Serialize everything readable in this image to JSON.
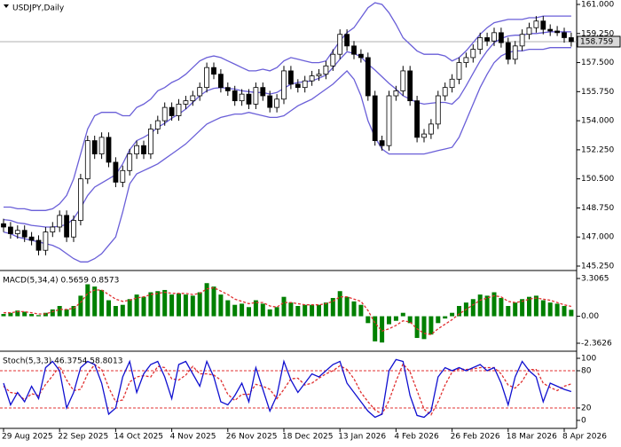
{
  "chart_data": [
    {
      "type": "candlestick",
      "title": "USDJPY,Daily",
      "categories": [
        "29 Aug 2025",
        null,
        null,
        null,
        null,
        null,
        null,
        null,
        "22 Sep 2025",
        null,
        null,
        null,
        null,
        null,
        null,
        null,
        "14 Oct 2025",
        null,
        null,
        null,
        null,
        null,
        null,
        null,
        "4 Nov 2025",
        null,
        null,
        null,
        null,
        null,
        null,
        null,
        "26 Nov 2025",
        null,
        null,
        null,
        null,
        null,
        null,
        null,
        "18 Dec 2025",
        null,
        null,
        null,
        null,
        null,
        null,
        null,
        "13 Jan 2026",
        null,
        null,
        null,
        null,
        null,
        null,
        null,
        "4 Feb 2026",
        null,
        null,
        null,
        null,
        null,
        null,
        null,
        "26 Feb 2026",
        null,
        null,
        null,
        null,
        null,
        null,
        null,
        "18 Mar 2026",
        null,
        null,
        null,
        null,
        null,
        null,
        null,
        "8 Apr 2026",
        null
      ],
      "open": [
        147.8,
        147.6,
        147.2,
        147.4,
        147.0,
        146.8,
        146.2,
        147.3,
        147.6,
        148.3,
        147.0,
        148.0,
        150.5,
        152.8,
        152.0,
        153.0,
        151.5,
        150.3,
        151.0,
        152.0,
        152.5,
        152.0,
        153.5,
        154.0,
        154.8,
        154.3,
        155.0,
        155.2,
        155.5,
        156.0,
        157.2,
        156.8,
        156.0,
        155.8,
        155.2,
        155.6,
        155.0,
        156.0,
        155.5,
        154.8,
        155.3,
        157.0,
        156.2,
        156.0,
        156.4,
        156.7,
        156.8,
        157.3,
        158.0,
        159.2,
        158.5,
        158.0,
        157.8,
        155.5,
        152.8,
        152.5,
        155.5,
        155.8,
        157.0,
        155.2,
        153.0,
        153.2,
        153.8,
        155.5,
        156.0,
        156.5,
        157.5,
        157.8,
        158.3,
        159.0,
        158.8,
        159.3,
        158.7,
        157.7,
        158.5,
        159.2,
        159.6,
        160.0,
        159.5,
        159.4,
        159.3,
        159.0
      ],
      "high": [
        148.1,
        147.9,
        147.7,
        147.7,
        147.3,
        147.1,
        147.6,
        147.9,
        148.6,
        148.6,
        148.3,
        150.8,
        153.1,
        153.1,
        153.3,
        153.3,
        151.8,
        151.3,
        152.3,
        152.8,
        152.8,
        153.8,
        154.3,
        155.1,
        155.1,
        155.3,
        155.5,
        155.8,
        156.3,
        157.5,
        157.5,
        157.1,
        156.3,
        156.1,
        155.9,
        155.9,
        156.3,
        156.3,
        155.8,
        155.6,
        157.3,
        157.3,
        156.5,
        156.7,
        157.0,
        157.1,
        157.6,
        158.3,
        159.5,
        159.5,
        158.8,
        158.3,
        158.1,
        155.8,
        153.1,
        155.8,
        156.1,
        157.3,
        157.3,
        155.5,
        153.5,
        154.1,
        155.8,
        156.3,
        156.8,
        157.8,
        158.1,
        158.6,
        159.3,
        159.3,
        159.6,
        159.6,
        159.0,
        158.8,
        159.5,
        159.9,
        160.3,
        160.3,
        159.8,
        159.7,
        159.6,
        159.3
      ],
      "low": [
        147.3,
        146.9,
        146.9,
        146.7,
        146.5,
        145.9,
        145.9,
        147.0,
        147.3,
        146.7,
        146.7,
        147.7,
        150.2,
        151.7,
        151.7,
        151.2,
        150.0,
        150.0,
        150.7,
        151.7,
        151.7,
        151.7,
        153.2,
        153.7,
        154.0,
        154.0,
        154.7,
        154.9,
        155.2,
        155.7,
        156.5,
        155.7,
        155.5,
        154.9,
        154.9,
        154.7,
        154.7,
        155.2,
        154.5,
        154.5,
        155.0,
        155.9,
        155.7,
        155.7,
        156.1,
        156.4,
        156.5,
        157.0,
        157.7,
        158.2,
        157.7,
        157.5,
        155.2,
        152.5,
        152.2,
        152.2,
        155.2,
        155.5,
        154.9,
        152.7,
        152.7,
        152.9,
        153.5,
        155.2,
        155.7,
        156.2,
        157.2,
        157.5,
        158.0,
        158.5,
        158.5,
        158.4,
        157.4,
        157.4,
        158.2,
        158.9,
        159.3,
        159.2,
        159.1,
        159.1,
        158.7,
        158.46
      ],
      "close": [
        147.6,
        147.2,
        147.4,
        147.0,
        146.8,
        146.2,
        147.3,
        147.6,
        148.3,
        147.0,
        148.0,
        150.5,
        152.8,
        152.0,
        153.0,
        151.5,
        150.3,
        151.0,
        152.0,
        152.5,
        152.0,
        153.5,
        154.0,
        154.8,
        154.3,
        155.0,
        155.2,
        155.5,
        156.0,
        157.2,
        156.8,
        156.0,
        155.8,
        155.2,
        155.6,
        155.0,
        156.0,
        155.5,
        154.8,
        155.3,
        157.0,
        156.2,
        156.0,
        156.4,
        156.7,
        156.8,
        157.3,
        158.0,
        159.2,
        158.5,
        158.0,
        157.8,
        155.5,
        152.8,
        152.5,
        155.5,
        155.8,
        157.0,
        155.2,
        153.0,
        153.2,
        153.8,
        155.5,
        156.0,
        156.5,
        157.5,
        157.8,
        158.3,
        159.0,
        158.8,
        159.3,
        158.7,
        157.7,
        158.5,
        159.2,
        159.6,
        160.0,
        159.5,
        159.4,
        159.3,
        159.0,
        158.759
      ],
      "up_color": "#ffffff",
      "down_color": "#000000",
      "bands": {
        "color": "#6a5fd8",
        "upper": [
          148.8,
          148.8,
          148.7,
          148.7,
          148.6,
          148.6,
          148.6,
          148.7,
          149.0,
          149.5,
          150.5,
          152.0,
          153.5,
          154.3,
          154.5,
          154.5,
          154.5,
          154.3,
          154.3,
          154.8,
          155.0,
          155.3,
          155.8,
          156.0,
          156.3,
          156.5,
          156.8,
          157.2,
          157.6,
          157.8,
          157.9,
          157.8,
          157.6,
          157.4,
          157.2,
          157.0,
          157.0,
          157.1,
          157.0,
          157.2,
          157.6,
          157.8,
          157.7,
          157.6,
          157.5,
          157.5,
          157.6,
          158.2,
          158.8,
          159.3,
          159.6,
          160.2,
          160.8,
          161.1,
          161.0,
          160.5,
          159.8,
          159.0,
          158.6,
          158.2,
          158.0,
          158.0,
          158.0,
          157.9,
          157.6,
          157.8,
          158.2,
          158.7,
          159.2,
          159.6,
          159.9,
          160.0,
          160.1,
          160.1,
          160.1,
          160.2,
          160.2,
          160.3,
          160.3,
          160.3,
          160.3,
          160.3
        ],
        "middle": [
          148.05,
          148.0,
          147.85,
          147.8,
          147.7,
          147.65,
          147.6,
          147.6,
          147.65,
          147.75,
          148.1,
          148.75,
          149.5,
          150.0,
          150.25,
          150.5,
          150.75,
          151.4,
          152.25,
          152.8,
          153.0,
          153.25,
          153.6,
          153.85,
          154.15,
          154.4,
          154.7,
          155.1,
          155.5,
          155.8,
          155.95,
          156.0,
          155.95,
          155.9,
          155.8,
          155.75,
          155.7,
          155.7,
          155.6,
          155.7,
          155.95,
          156.2,
          156.3,
          156.35,
          156.4,
          156.55,
          156.75,
          157.2,
          157.7,
          158.15,
          158.05,
          157.85,
          157.4,
          157.05,
          156.65,
          156.25,
          155.9,
          155.5,
          155.3,
          155.1,
          155.0,
          155.05,
          155.1,
          155.1,
          155.0,
          155.4,
          156.1,
          156.85,
          157.6,
          158.2,
          158.7,
          158.95,
          159.1,
          159.15,
          159.15,
          159.25,
          159.25,
          159.3,
          159.35,
          159.35,
          159.35,
          159.35
        ],
        "lower": [
          147.3,
          147.2,
          147.0,
          146.9,
          146.8,
          146.7,
          146.6,
          146.5,
          146.3,
          146.0,
          145.7,
          145.5,
          145.5,
          145.7,
          146.0,
          146.5,
          147.0,
          148.5,
          150.2,
          150.8,
          151.0,
          151.2,
          151.4,
          151.7,
          152.0,
          152.3,
          152.6,
          153.0,
          153.4,
          153.8,
          154.0,
          154.2,
          154.3,
          154.4,
          154.4,
          154.5,
          154.4,
          154.3,
          154.2,
          154.2,
          154.3,
          154.6,
          154.9,
          155.1,
          155.3,
          155.6,
          155.9,
          156.2,
          156.6,
          157.0,
          156.5,
          155.5,
          154.0,
          153.0,
          152.3,
          152.0,
          152.0,
          152.0,
          152.0,
          152.0,
          152.0,
          152.1,
          152.2,
          152.3,
          152.4,
          153.0,
          154.0,
          155.0,
          156.0,
          156.8,
          157.5,
          157.9,
          158.1,
          158.2,
          158.2,
          158.3,
          158.3,
          158.3,
          158.4,
          158.4,
          158.4,
          158.4
        ]
      },
      "last_price": {
        "value": 158.759,
        "label": "158.759"
      },
      "ylim": [
        145.25,
        161.0
      ],
      "yticks": [
        {
          "value": 161.0,
          "label": "161.000"
        },
        {
          "value": 159.25,
          "label": "159.250"
        },
        {
          "value": 157.5,
          "label": "157.500"
        },
        {
          "value": 155.75,
          "label": "155.750"
        },
        {
          "value": 154.0,
          "label": "154.000"
        },
        {
          "value": 152.25,
          "label": "152.250"
        },
        {
          "value": 150.5,
          "label": "150.500"
        },
        {
          "value": 148.75,
          "label": "148.750"
        },
        {
          "value": 147.0,
          "label": "147.000"
        },
        {
          "value": 145.25,
          "label": "145.250"
        }
      ]
    },
    {
      "type": "macd",
      "title": "MACD(5,34,4) 0.5659 0.8573",
      "color": "#008000",
      "signal_color": "#e03030",
      "histogram": [
        0.2,
        0.3,
        0.5,
        0.4,
        0.2,
        0.1,
        0.3,
        0.6,
        0.9,
        0.6,
        0.9,
        1.8,
        2.8,
        2.6,
        2.3,
        1.4,
        0.9,
        1.0,
        1.5,
        1.9,
        1.7,
        2.1,
        2.2,
        2.3,
        1.9,
        2.0,
        1.9,
        1.8,
        2.1,
        2.9,
        2.6,
        1.9,
        1.4,
        1.0,
        1.1,
        0.8,
        1.4,
        1.1,
        0.6,
        0.8,
        1.7,
        1.2,
        0.9,
        1.0,
        1.0,
        1.0,
        1.2,
        1.6,
        2.2,
        1.7,
        1.3,
        1.0,
        -0.6,
        -2.2,
        -2.3,
        -0.7,
        -0.4,
        0.3,
        -0.6,
        -1.9,
        -2.0,
        -1.6,
        -0.6,
        -0.2,
        0.3,
        0.9,
        1.2,
        1.5,
        1.9,
        1.8,
        2.1,
        1.6,
        0.9,
        1.2,
        1.5,
        1.7,
        1.8,
        1.4,
        1.2,
        1.1,
        0.9,
        0.5659
      ],
      "signal": [
        0.3,
        0.3,
        0.4,
        0.4,
        0.3,
        0.2,
        0.2,
        0.4,
        0.6,
        0.6,
        0.7,
        1.2,
        2.0,
        2.3,
        2.3,
        1.9,
        1.5,
        1.3,
        1.4,
        1.6,
        1.7,
        1.9,
        2.0,
        2.1,
        2.0,
        2.0,
        2.0,
        1.9,
        2.0,
        2.4,
        2.5,
        2.2,
        1.9,
        1.5,
        1.3,
        1.1,
        1.2,
        1.2,
        0.9,
        0.8,
        1.2,
        1.2,
        1.1,
        1.0,
        1.0,
        1.0,
        1.1,
        1.3,
        1.7,
        1.7,
        1.5,
        1.3,
        0.5,
        -0.6,
        -1.3,
        -1.1,
        -0.8,
        -0.4,
        -0.5,
        -1.1,
        -1.5,
        -1.6,
        -1.1,
        -0.7,
        -0.3,
        0.2,
        0.6,
        1.0,
        1.4,
        1.6,
        1.8,
        1.7,
        1.3,
        1.2,
        1.3,
        1.5,
        1.6,
        1.5,
        1.4,
        1.2,
        1.0,
        0.8573
      ],
      "ylim": [
        -2.3626,
        3.3065
      ],
      "yticks": [
        3.3065,
        {
          "value": 0,
          "label": "0.00"
        },
        -2.3626
      ]
    },
    {
      "type": "stochastic",
      "title": "Stoch(5,3,3) 46.3754 58.8013",
      "color": "#1010d0",
      "signal_color": "#e03030",
      "main": [
        60,
        25,
        45,
        30,
        55,
        35,
        85,
        95,
        80,
        20,
        45,
        85,
        95,
        90,
        60,
        10,
        20,
        70,
        95,
        45,
        75,
        90,
        95,
        70,
        35,
        90,
        95,
        75,
        55,
        95,
        70,
        30,
        25,
        40,
        60,
        30,
        85,
        50,
        15,
        40,
        95,
        65,
        45,
        60,
        75,
        70,
        80,
        90,
        95,
        60,
        45,
        30,
        15,
        5,
        10,
        80,
        98,
        95,
        40,
        8,
        5,
        15,
        70,
        85,
        80,
        85,
        80,
        85,
        90,
        80,
        85,
        60,
        25,
        70,
        95,
        80,
        70,
        30,
        60,
        55,
        50,
        46.3754
      ],
      "signal": [
        55,
        45,
        43,
        33,
        43,
        40,
        58,
        72,
        87,
        65,
        48,
        50,
        75,
        90,
        82,
        53,
        30,
        33,
        62,
        70,
        72,
        70,
        87,
        85,
        67,
        65,
        73,
        87,
        75,
        75,
        73,
        65,
        42,
        32,
        42,
        42,
        58,
        55,
        50,
        35,
        50,
        67,
        68,
        57,
        60,
        68,
        75,
        80,
        88,
        82,
        67,
        45,
        30,
        17,
        10,
        32,
        63,
        91,
        78,
        48,
        18,
        9,
        30,
        57,
        78,
        83,
        82,
        83,
        85,
        85,
        85,
        75,
        57,
        52,
        63,
        82,
        82,
        60,
        53,
        48,
        55,
        58.8013
      ],
      "levels": [
        20,
        80
      ],
      "ylim": [
        0,
        100
      ],
      "yticks": [
        100,
        80,
        20,
        0
      ]
    }
  ]
}
